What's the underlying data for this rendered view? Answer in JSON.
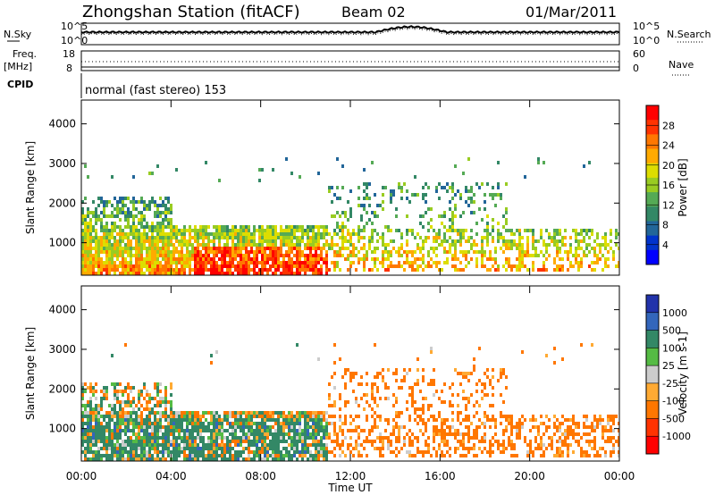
{
  "header": {
    "title": "Zhongshan Station (fitACF)",
    "beam": "Beam 02",
    "date": "01/Mar/2011"
  },
  "status_panels": {
    "nsky_label": "N.Sky",
    "nsearch_label": "N.Search",
    "freq_label_top": "Freq.",
    "freq_label_unit": "[MHz]",
    "nave_label": "Nave",
    "cpid_label": "CPID",
    "cpid_text": "normal (fast stereo) 153",
    "noise_left_ticks": [
      "10^5",
      "10^0"
    ],
    "noise_right_ticks": [
      "10^5",
      "10^0"
    ],
    "freq_left_ticks": [
      "18",
      "8"
    ],
    "freq_right_ticks": [
      "60",
      "0"
    ]
  },
  "colorbars": {
    "power": {
      "label": "Power [dB]",
      "ticks": [
        "28",
        "24",
        "20",
        "16",
        "12",
        "8",
        "4"
      ],
      "colors": [
        "#ff0000",
        "#ff3300",
        "#ff7700",
        "#ffaa00",
        "#dddd00",
        "#99cc22",
        "#55aa55",
        "#338866",
        "#226699",
        "#0033cc",
        "#0000ff"
      ]
    },
    "velocity": {
      "label": "Velocity [m s-1]",
      "ticks": [
        "1000",
        "500",
        "100",
        "25",
        "-25",
        "-100",
        "-500",
        "-1000"
      ],
      "colors": [
        "#2233aa",
        "#3366bb",
        "#338866",
        "#55bb44",
        "#cccccc",
        "#ffaa33",
        "#ff7700",
        "#ff3300",
        "#ff0000"
      ]
    }
  },
  "chart_data": [
    {
      "type": "heatmap",
      "title": "",
      "ylabel": "Slant Range [km]",
      "xlabel": "",
      "y_ticks": [
        "1000",
        "2000",
        "3000",
        "4000"
      ],
      "x_ticks": [
        "00:00",
        "04:00",
        "08:00",
        "12:00",
        "16:00",
        "20:00",
        "00:00"
      ],
      "xlim": [
        "00:00",
        "24:00"
      ],
      "ylim": [
        180,
        4600
      ],
      "quantity": "Power [dB]",
      "value_range": [
        0,
        30
      ]
    },
    {
      "type": "heatmap",
      "title": "",
      "ylabel": "Slant Range [km]",
      "xlabel": "Time UT",
      "y_ticks": [
        "1000",
        "2000",
        "3000",
        "4000"
      ],
      "x_ticks": [
        "00:00",
        "04:00",
        "08:00",
        "12:00",
        "16:00",
        "20:00",
        "00:00"
      ],
      "xlim": [
        "00:00",
        "24:00"
      ],
      "ylim": [
        180,
        4600
      ],
      "quantity": "Velocity [m s-1]",
      "value_range": [
        -1000,
        1000
      ]
    }
  ]
}
